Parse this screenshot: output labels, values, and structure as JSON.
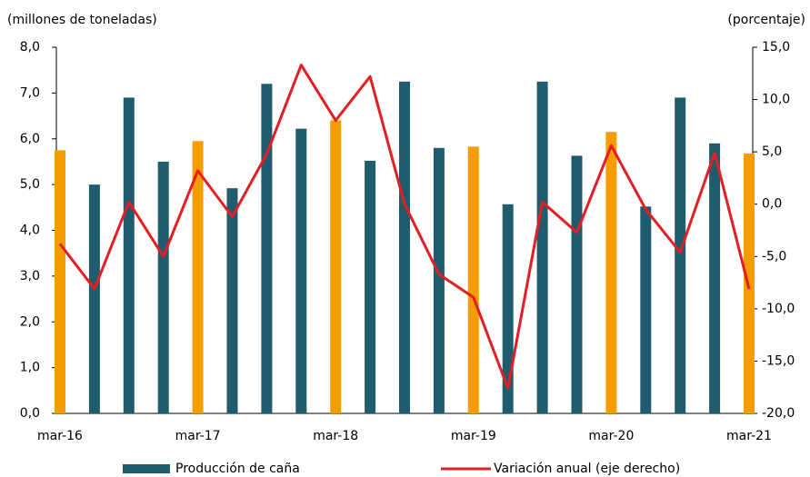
{
  "chart_data": {
    "type": "bar-line",
    "y_label": "(millones de toneladas)",
    "y2_label": "(porcentaje)",
    "categories": [
      "mar-16",
      null,
      null,
      null,
      "mar-17",
      null,
      null,
      null,
      "mar-18",
      null,
      null,
      null,
      "mar-19",
      null,
      null,
      null,
      "mar-20",
      null,
      null,
      null,
      "mar-21"
    ],
    "series": [
      {
        "name": "Producción de caña",
        "type": "bar",
        "color": "#1f5c6e",
        "colors": [
          "#f59c00",
          "#1f5c6e",
          "#1f5c6e",
          "#1f5c6e",
          "#f59c00",
          "#1f5c6e",
          "#1f5c6e",
          "#1f5c6e",
          "#f59c00",
          "#1f5c6e",
          "#1f5c6e",
          "#1f5c6e",
          "#f59c00",
          "#1f5c6e",
          "#1f5c6e",
          "#1f5c6e",
          "#f59c00",
          "#1f5c6e",
          "#1f5c6e",
          "#1f5c6e",
          "#f59c00"
        ],
        "values": [
          5.75,
          5.0,
          6.9,
          5.5,
          5.95,
          4.92,
          7.2,
          6.22,
          6.4,
          5.52,
          7.25,
          5.8,
          5.83,
          4.57,
          7.25,
          5.63,
          6.15,
          4.52,
          6.9,
          5.9,
          5.68
        ]
      },
      {
        "name": "Variación anual (eje derecho)",
        "type": "line",
        "axis": "y2",
        "color": "#e31e24",
        "values": [
          -3.8,
          -8.1,
          0.2,
          -5.0,
          3.2,
          -1.2,
          4.8,
          13.3,
          8.0,
          12.2,
          0.0,
          -6.7,
          -8.9,
          -17.6,
          0.2,
          -2.7,
          5.6,
          -0.5,
          -4.6,
          4.9,
          -8.1
        ]
      }
    ],
    "ylim": [
      0,
      8
    ],
    "yticks": [
      {
        "value": 0,
        "label": "0,0"
      },
      {
        "value": 1,
        "label": "1,0"
      },
      {
        "value": 2,
        "label": "2,0"
      },
      {
        "value": 3,
        "label": "3,0"
      },
      {
        "value": 4,
        "label": "4,0"
      },
      {
        "value": 5,
        "label": "5,0"
      },
      {
        "value": 6,
        "label": "6,0"
      },
      {
        "value": 7,
        "label": "7,0"
      },
      {
        "value": 8,
        "label": "8,0"
      }
    ],
    "y2lim": [
      -20,
      15
    ],
    "y2ticks": [
      {
        "value": -20,
        "label": "-20,0"
      },
      {
        "value": -15,
        "label": "-15,0"
      },
      {
        "value": -10,
        "label": "-10,0"
      },
      {
        "value": -5,
        "label": "-5,0"
      },
      {
        "value": 0,
        "label": "0,0"
      },
      {
        "value": 5,
        "label": "5,0"
      },
      {
        "value": 10,
        "label": "10,0"
      },
      {
        "value": 15,
        "label": "15,0"
      }
    ]
  }
}
